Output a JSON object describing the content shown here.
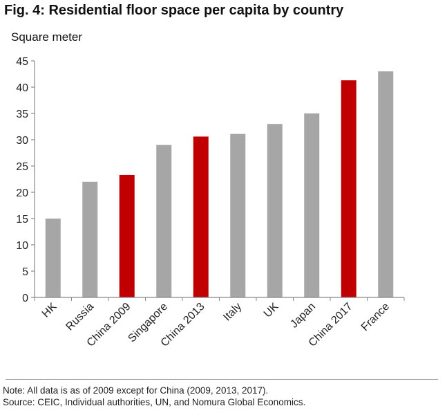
{
  "title": "Fig. 4: Residential floor space per capita by country",
  "footer": {
    "note": "Note: All data is as of 2009 except for China (2009, 2013, 2017).",
    "source": "Source: CEIC, Individual authorities, UN, and Nomura Global Economics."
  },
  "colors": {
    "gray": "#a6a6a6",
    "red": "#c00000"
  },
  "chart_data": {
    "type": "bar",
    "title": "Fig. 4: Residential floor space per capita by country",
    "ylabel": "Square meter",
    "xlabel": "",
    "ylim": [
      0,
      45
    ],
    "yticks": [
      0,
      5,
      10,
      15,
      20,
      25,
      30,
      35,
      40,
      45
    ],
    "grid": false,
    "categories": [
      "HK",
      "Russia",
      "China 2009",
      "Singapore",
      "China 2013",
      "Italy",
      "UK",
      "Japan",
      "China 2017",
      "France"
    ],
    "values": [
      15,
      22,
      23.3,
      29,
      30.6,
      31.1,
      33,
      35,
      41.3,
      43
    ],
    "highlight": [
      false,
      false,
      true,
      false,
      true,
      false,
      false,
      false,
      true,
      false
    ]
  }
}
